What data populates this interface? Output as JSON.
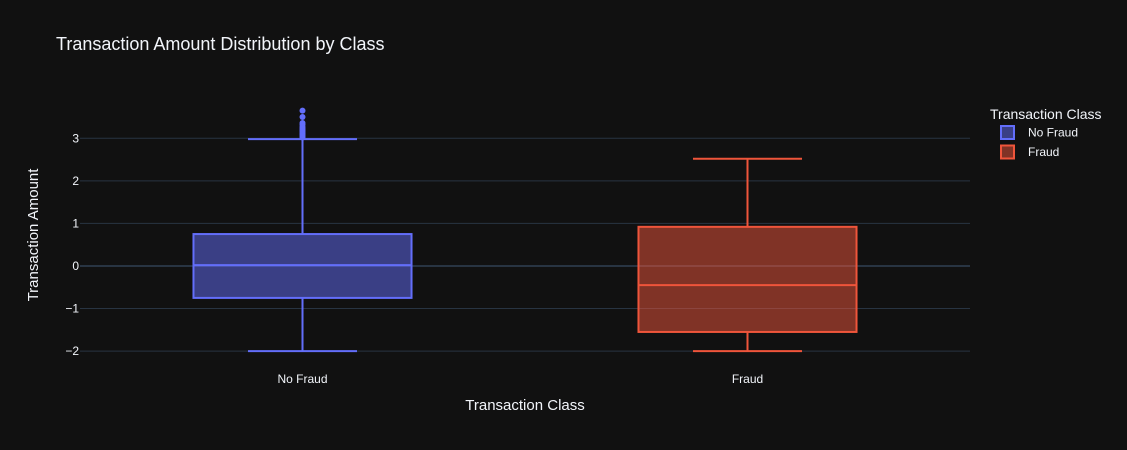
{
  "chart_data": {
    "type": "box",
    "title": "Transaction Amount Distribution by Class",
    "xlabel": "Transaction Class",
    "ylabel": "Transaction Amount",
    "ylim": [
      -2.35,
      3.9
    ],
    "yticks": [
      -2,
      -1,
      0,
      1,
      2,
      3
    ],
    "ytick_labels": [
      "−2",
      "−1",
      "0",
      "1",
      "2",
      "3"
    ],
    "categories": [
      "No Fraud",
      "Fraud"
    ],
    "legend_title": "Transaction Class",
    "legend_position": "top-right",
    "grid": true,
    "series": [
      {
        "name": "No Fraud",
        "color": "#636efa",
        "whisker_low": -2.0,
        "q1": -0.75,
        "median": 0.02,
        "q3": 0.75,
        "whisker_high": 2.98,
        "outliers": [
          3.02,
          3.05,
          3.08,
          3.1,
          3.12,
          3.15,
          3.18,
          3.2,
          3.23,
          3.27,
          3.32,
          3.36,
          3.5,
          3.65
        ]
      },
      {
        "name": "Fraud",
        "color": "#ef553b",
        "whisker_low": -2.0,
        "q1": -1.55,
        "median": -0.45,
        "q3": 0.92,
        "whisker_high": 2.52,
        "outliers": []
      }
    ]
  }
}
